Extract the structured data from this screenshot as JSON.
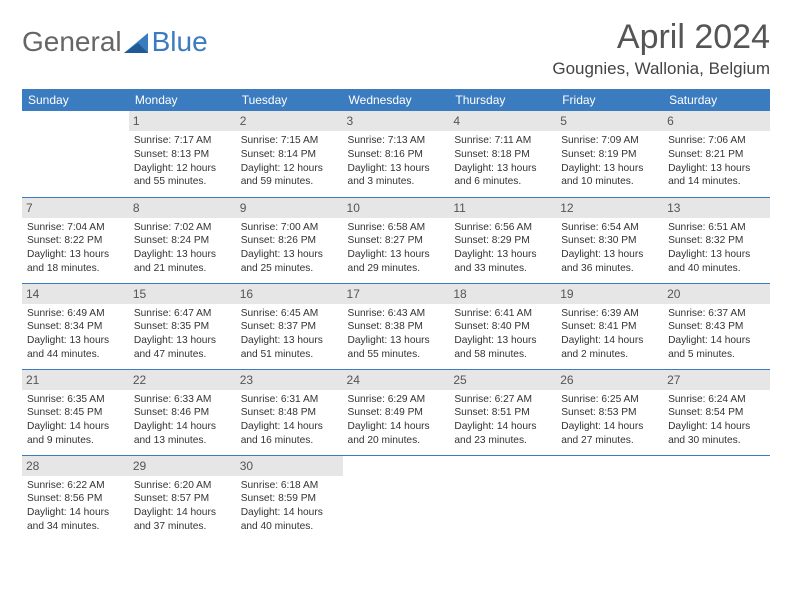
{
  "logo": {
    "text1": "General",
    "text2": "Blue"
  },
  "title": "April 2024",
  "location": "Gougnies, Wallonia, Belgium",
  "colors": {
    "header_bg": "#3b7bbf",
    "header_fg": "#ffffff",
    "daynum_bg": "#e6e6e6",
    "border": "#3b7bbf",
    "text": "#333333",
    "background": "#ffffff"
  },
  "typography": {
    "title_fontsize": 34,
    "location_fontsize": 17,
    "header_fontsize": 12,
    "cell_fontsize": 10.2
  },
  "day_headers": [
    "Sunday",
    "Monday",
    "Tuesday",
    "Wednesday",
    "Thursday",
    "Friday",
    "Saturday"
  ],
  "weeks": [
    [
      null,
      {
        "n": "1",
        "sunrise": "Sunrise: 7:17 AM",
        "sunset": "Sunset: 8:13 PM",
        "daylight": "Daylight: 12 hours and 55 minutes."
      },
      {
        "n": "2",
        "sunrise": "Sunrise: 7:15 AM",
        "sunset": "Sunset: 8:14 PM",
        "daylight": "Daylight: 12 hours and 59 minutes."
      },
      {
        "n": "3",
        "sunrise": "Sunrise: 7:13 AM",
        "sunset": "Sunset: 8:16 PM",
        "daylight": "Daylight: 13 hours and 3 minutes."
      },
      {
        "n": "4",
        "sunrise": "Sunrise: 7:11 AM",
        "sunset": "Sunset: 8:18 PM",
        "daylight": "Daylight: 13 hours and 6 minutes."
      },
      {
        "n": "5",
        "sunrise": "Sunrise: 7:09 AM",
        "sunset": "Sunset: 8:19 PM",
        "daylight": "Daylight: 13 hours and 10 minutes."
      },
      {
        "n": "6",
        "sunrise": "Sunrise: 7:06 AM",
        "sunset": "Sunset: 8:21 PM",
        "daylight": "Daylight: 13 hours and 14 minutes."
      }
    ],
    [
      {
        "n": "7",
        "sunrise": "Sunrise: 7:04 AM",
        "sunset": "Sunset: 8:22 PM",
        "daylight": "Daylight: 13 hours and 18 minutes."
      },
      {
        "n": "8",
        "sunrise": "Sunrise: 7:02 AM",
        "sunset": "Sunset: 8:24 PM",
        "daylight": "Daylight: 13 hours and 21 minutes."
      },
      {
        "n": "9",
        "sunrise": "Sunrise: 7:00 AM",
        "sunset": "Sunset: 8:26 PM",
        "daylight": "Daylight: 13 hours and 25 minutes."
      },
      {
        "n": "10",
        "sunrise": "Sunrise: 6:58 AM",
        "sunset": "Sunset: 8:27 PM",
        "daylight": "Daylight: 13 hours and 29 minutes."
      },
      {
        "n": "11",
        "sunrise": "Sunrise: 6:56 AM",
        "sunset": "Sunset: 8:29 PM",
        "daylight": "Daylight: 13 hours and 33 minutes."
      },
      {
        "n": "12",
        "sunrise": "Sunrise: 6:54 AM",
        "sunset": "Sunset: 8:30 PM",
        "daylight": "Daylight: 13 hours and 36 minutes."
      },
      {
        "n": "13",
        "sunrise": "Sunrise: 6:51 AM",
        "sunset": "Sunset: 8:32 PM",
        "daylight": "Daylight: 13 hours and 40 minutes."
      }
    ],
    [
      {
        "n": "14",
        "sunrise": "Sunrise: 6:49 AM",
        "sunset": "Sunset: 8:34 PM",
        "daylight": "Daylight: 13 hours and 44 minutes."
      },
      {
        "n": "15",
        "sunrise": "Sunrise: 6:47 AM",
        "sunset": "Sunset: 8:35 PM",
        "daylight": "Daylight: 13 hours and 47 minutes."
      },
      {
        "n": "16",
        "sunrise": "Sunrise: 6:45 AM",
        "sunset": "Sunset: 8:37 PM",
        "daylight": "Daylight: 13 hours and 51 minutes."
      },
      {
        "n": "17",
        "sunrise": "Sunrise: 6:43 AM",
        "sunset": "Sunset: 8:38 PM",
        "daylight": "Daylight: 13 hours and 55 minutes."
      },
      {
        "n": "18",
        "sunrise": "Sunrise: 6:41 AM",
        "sunset": "Sunset: 8:40 PM",
        "daylight": "Daylight: 13 hours and 58 minutes."
      },
      {
        "n": "19",
        "sunrise": "Sunrise: 6:39 AM",
        "sunset": "Sunset: 8:41 PM",
        "daylight": "Daylight: 14 hours and 2 minutes."
      },
      {
        "n": "20",
        "sunrise": "Sunrise: 6:37 AM",
        "sunset": "Sunset: 8:43 PM",
        "daylight": "Daylight: 14 hours and 5 minutes."
      }
    ],
    [
      {
        "n": "21",
        "sunrise": "Sunrise: 6:35 AM",
        "sunset": "Sunset: 8:45 PM",
        "daylight": "Daylight: 14 hours and 9 minutes."
      },
      {
        "n": "22",
        "sunrise": "Sunrise: 6:33 AM",
        "sunset": "Sunset: 8:46 PM",
        "daylight": "Daylight: 14 hours and 13 minutes."
      },
      {
        "n": "23",
        "sunrise": "Sunrise: 6:31 AM",
        "sunset": "Sunset: 8:48 PM",
        "daylight": "Daylight: 14 hours and 16 minutes."
      },
      {
        "n": "24",
        "sunrise": "Sunrise: 6:29 AM",
        "sunset": "Sunset: 8:49 PM",
        "daylight": "Daylight: 14 hours and 20 minutes."
      },
      {
        "n": "25",
        "sunrise": "Sunrise: 6:27 AM",
        "sunset": "Sunset: 8:51 PM",
        "daylight": "Daylight: 14 hours and 23 minutes."
      },
      {
        "n": "26",
        "sunrise": "Sunrise: 6:25 AM",
        "sunset": "Sunset: 8:53 PM",
        "daylight": "Daylight: 14 hours and 27 minutes."
      },
      {
        "n": "27",
        "sunrise": "Sunrise: 6:24 AM",
        "sunset": "Sunset: 8:54 PM",
        "daylight": "Daylight: 14 hours and 30 minutes."
      }
    ],
    [
      {
        "n": "28",
        "sunrise": "Sunrise: 6:22 AM",
        "sunset": "Sunset: 8:56 PM",
        "daylight": "Daylight: 14 hours and 34 minutes."
      },
      {
        "n": "29",
        "sunrise": "Sunrise: 6:20 AM",
        "sunset": "Sunset: 8:57 PM",
        "daylight": "Daylight: 14 hours and 37 minutes."
      },
      {
        "n": "30",
        "sunrise": "Sunrise: 6:18 AM",
        "sunset": "Sunset: 8:59 PM",
        "daylight": "Daylight: 14 hours and 40 minutes."
      },
      null,
      null,
      null,
      null
    ]
  ]
}
